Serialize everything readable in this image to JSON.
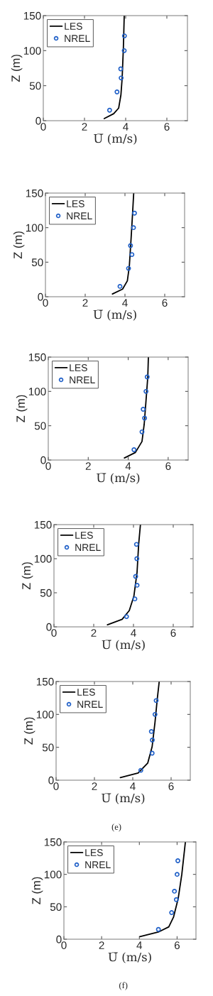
{
  "chart_data": [
    {
      "type": "line",
      "xlabel": "U̅ (m/s)",
      "ylabel": "Z (m)",
      "xlim": [
        0,
        7
      ],
      "xticks": [
        0,
        2,
        4,
        6
      ],
      "ylim": [
        0,
        150
      ],
      "yticks": [
        0,
        50,
        100,
        150
      ],
      "grid": false,
      "legend": "top left",
      "series": [
        {
          "name": "LES",
          "type": "line",
          "color": "#000000",
          "line_style": "solid",
          "marker": "none",
          "x": [
            2.96,
            3.42,
            3.66,
            3.77,
            3.83,
            3.89,
            3.93
          ],
          "values": [
            3,
            10,
            18,
            37,
            61,
            105,
            150
          ]
        },
        {
          "name": "NREL",
          "type": "scatter",
          "color": "#2060c8",
          "marker": "circle",
          "x": [
            3.22,
            3.58,
            3.78,
            3.76,
            3.93,
            3.94
          ],
          "values": [
            15,
            41,
            61,
            74,
            100,
            121
          ]
        }
      ]
    },
    {
      "type": "line",
      "xlabel": "U̅ (m/s)",
      "ylabel": "Z (m)",
      "xlim": [
        0,
        7
      ],
      "xticks": [
        0,
        2,
        4,
        6
      ],
      "ylim": [
        0,
        150
      ],
      "yticks": [
        0,
        50,
        100,
        150
      ],
      "grid": false,
      "legend": "top left",
      "series": [
        {
          "name": "LES",
          "type": "line",
          "color": "#000000",
          "line_style": "solid",
          "marker": "none",
          "x": [
            3.37,
            3.88,
            4.12,
            4.22,
            4.31,
            4.38,
            4.44
          ],
          "values": [
            4,
            11,
            23,
            44,
            85,
            119,
            150
          ]
        },
        {
          "name": "NREL",
          "type": "scatter",
          "color": "#2060c8",
          "marker": "circle",
          "x": [
            3.75,
            4.18,
            4.35,
            4.28,
            4.43,
            4.48
          ],
          "values": [
            15,
            41,
            61,
            74,
            100,
            121
          ]
        }
      ]
    },
    {
      "type": "line",
      "xlabel": "U̅ (m/s)",
      "ylabel": "Z (m)",
      "xlim": [
        0,
        7
      ],
      "xticks": [
        0,
        2,
        4,
        6
      ],
      "ylim": [
        0,
        150
      ],
      "yticks": [
        0,
        50,
        100,
        150
      ],
      "grid": false,
      "legend": "top left",
      "series": [
        {
          "name": "LES",
          "type": "line",
          "color": "#000000",
          "line_style": "solid",
          "marker": "none",
          "x": [
            3.81,
            4.36,
            4.69,
            4.8,
            4.89,
            4.98,
            5.01
          ],
          "values": [
            3,
            11,
            27,
            52,
            86,
            121,
            150
          ]
        },
        {
          "name": "NREL",
          "type": "scatter",
          "color": "#2060c8",
          "marker": "circle",
          "x": [
            4.29,
            4.69,
            4.82,
            4.75,
            4.89,
            4.95
          ],
          "values": [
            15,
            41,
            61,
            74,
            100,
            121
          ]
        }
      ]
    },
    {
      "type": "line",
      "xlabel": "U̅ (m/s)",
      "ylabel": "Z (m)",
      "xlim": [
        0,
        7
      ],
      "xticks": [
        0,
        2,
        4,
        6
      ],
      "ylim": [
        0,
        150
      ],
      "yticks": [
        0,
        50,
        100,
        150
      ],
      "grid": false,
      "legend": "top left",
      "series": [
        {
          "name": "LES",
          "type": "line",
          "color": "#000000",
          "line_style": "solid",
          "marker": "none",
          "x": [
            2.69,
            3.43,
            3.79,
            4.02,
            4.18,
            4.26,
            4.35
          ],
          "values": [
            3,
            11,
            24,
            45,
            80,
            121,
            150
          ]
        },
        {
          "name": "NREL",
          "type": "scatter",
          "color": "#2060c8",
          "marker": "circle",
          "x": [
            3.65,
            4.07,
            4.18,
            4.11,
            4.17,
            4.15
          ],
          "values": [
            15,
            41,
            61,
            74,
            100,
            121
          ]
        }
      ]
    },
    {
      "type": "line",
      "xlabel": "U̅ (m/s)",
      "ylabel": "Z (m)",
      "xlim": [
        0,
        7
      ],
      "xticks": [
        0,
        2,
        4,
        6
      ],
      "ylim": [
        0,
        150
      ],
      "yticks": [
        0,
        50,
        100,
        150
      ],
      "grid": false,
      "legend": "top left",
      "annotations": [
        "(e)"
      ],
      "series": [
        {
          "name": "LES",
          "type": "line",
          "color": "#000000",
          "line_style": "solid",
          "marker": "none",
          "x": [
            3.35,
            4.28,
            4.78,
            5.01,
            5.16,
            5.28,
            5.38
          ],
          "values": [
            4,
            11,
            26,
            51,
            88,
            124,
            150
          ]
        },
        {
          "name": "NREL",
          "type": "scatter",
          "color": "#2060c8",
          "marker": "circle",
          "x": [
            4.42,
            5.01,
            5.02,
            4.97,
            5.16,
            5.22
          ],
          "values": [
            15,
            41,
            61,
            74,
            100,
            121
          ]
        }
      ]
    },
    {
      "type": "line",
      "xlabel": "U̅ (m/s)",
      "ylabel": "Z (m)",
      "xlim": [
        0,
        7
      ],
      "xticks": [
        0,
        2,
        4,
        6
      ],
      "ylim": [
        0,
        150
      ],
      "yticks": [
        0,
        50,
        100,
        150
      ],
      "grid": false,
      "legend": "top left",
      "annotations": [
        "(f)"
      ],
      "series": [
        {
          "name": "LES",
          "type": "line",
          "color": "#000000",
          "line_style": "solid",
          "marker": "none",
          "x": [
            4.03,
            5.0,
            5.56,
            5.81,
            6.06,
            6.25,
            6.44
          ],
          "values": [
            4,
            11,
            19,
            34,
            63,
            100,
            150
          ]
        },
        {
          "name": "NREL",
          "type": "scatter",
          "color": "#2060c8",
          "marker": "circle",
          "x": [
            5.01,
            5.71,
            5.96,
            5.86,
            6.0,
            6.04
          ],
          "values": [
            15,
            41,
            61,
            74,
            100,
            121
          ]
        }
      ]
    }
  ]
}
